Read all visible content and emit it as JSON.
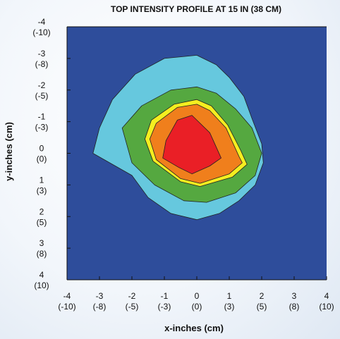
{
  "chart_data": {
    "type": "contour",
    "title": "TOP INTENSITY PROFILE AT 15 IN (38 CM)",
    "xlabel": "x-inches (cm)",
    "ylabel": "y-inches (cm)",
    "xlim": [
      -4,
      4
    ],
    "ylim": [
      -4,
      4
    ],
    "y_axis_direction": "down",
    "x_ticks": [
      {
        "value": -4,
        "inch": "-4",
        "cm": "(-10)"
      },
      {
        "value": -3,
        "inch": "-3",
        "cm": "(-8)"
      },
      {
        "value": -2,
        "inch": "-2",
        "cm": "(-5)"
      },
      {
        "value": -1,
        "inch": "-1",
        "cm": "(-3)"
      },
      {
        "value": 0,
        "inch": "0",
        "cm": "(0)"
      },
      {
        "value": 1,
        "inch": "1",
        "cm": "(3)"
      },
      {
        "value": 2,
        "inch": "2",
        "cm": "(5)"
      },
      {
        "value": 3,
        "inch": "3",
        "cm": "(8)"
      },
      {
        "value": 4,
        "inch": "4",
        "cm": "(10)"
      }
    ],
    "y_ticks": [
      {
        "value": -4,
        "inch": "-4",
        "cm": "(-10)"
      },
      {
        "value": -3,
        "inch": "-3",
        "cm": "(-8)"
      },
      {
        "value": -2,
        "inch": "-2",
        "cm": "(-5)"
      },
      {
        "value": -1,
        "inch": "-1",
        "cm": "(-3)"
      },
      {
        "value": 0,
        "inch": "0",
        "cm": "(0)"
      },
      {
        "value": 1,
        "inch": "1",
        "cm": "(3)"
      },
      {
        "value": 2,
        "inch": "2",
        "cm": "(5)"
      },
      {
        "value": 3,
        "inch": "3",
        "cm": "(8)"
      },
      {
        "value": 4,
        "inch": "4",
        "cm": "(10)"
      }
    ],
    "background_color": "#2e4d9b",
    "levels": [
      {
        "color": "#66c8de",
        "points": [
          [
            0.0,
            -3.1
          ],
          [
            0.6,
            -2.8
          ],
          [
            1.0,
            -2.4
          ],
          [
            1.45,
            -1.8
          ],
          [
            1.7,
            -1.1
          ],
          [
            2.0,
            -0.3
          ],
          [
            2.05,
            0.3
          ],
          [
            1.8,
            1.0
          ],
          [
            1.3,
            1.5
          ],
          [
            0.7,
            1.9
          ],
          [
            0.0,
            2.1
          ],
          [
            -0.8,
            1.9
          ],
          [
            -1.5,
            1.4
          ],
          [
            -2.0,
            0.7
          ],
          [
            -3.2,
            0.0
          ],
          [
            -3.0,
            -0.8
          ],
          [
            -2.6,
            -1.7
          ],
          [
            -1.9,
            -2.5
          ],
          [
            -1.0,
            -3.0
          ]
        ]
      },
      {
        "color": "#55a840",
        "points": [
          [
            -0.8,
            -2.0
          ],
          [
            0.0,
            -2.1
          ],
          [
            0.6,
            -1.9
          ],
          [
            1.2,
            -1.4
          ],
          [
            1.7,
            -0.8
          ],
          [
            2.0,
            0.0
          ],
          [
            1.8,
            0.7
          ],
          [
            1.2,
            1.25
          ],
          [
            0.3,
            1.55
          ],
          [
            -0.4,
            1.5
          ],
          [
            -1.3,
            1.0
          ],
          [
            -2.0,
            0.3
          ],
          [
            -2.3,
            -0.8
          ],
          [
            -1.7,
            -1.5
          ]
        ]
      },
      {
        "color": "#f4ee20",
        "points": [
          [
            -0.7,
            -1.55
          ],
          [
            0.0,
            -1.7
          ],
          [
            0.45,
            -1.5
          ],
          [
            0.95,
            -0.9
          ],
          [
            1.35,
            -0.1
          ],
          [
            1.55,
            0.35
          ],
          [
            1.1,
            0.75
          ],
          [
            0.1,
            1.05
          ],
          [
            -0.5,
            0.9
          ],
          [
            -1.35,
            0.25
          ],
          [
            -1.6,
            -0.45
          ],
          [
            -1.4,
            -1.05
          ]
        ]
      },
      {
        "color": "#f07f1c",
        "points": [
          [
            -0.6,
            -1.45
          ],
          [
            0.0,
            -1.55
          ],
          [
            0.4,
            -1.35
          ],
          [
            0.9,
            -0.8
          ],
          [
            1.3,
            0.1
          ],
          [
            1.4,
            0.3
          ],
          [
            1.0,
            0.65
          ],
          [
            0.1,
            0.95
          ],
          [
            -0.5,
            0.8
          ],
          [
            -1.25,
            0.2
          ],
          [
            -1.45,
            -0.45
          ],
          [
            -1.25,
            -0.95
          ]
        ]
      },
      {
        "color": "#ea1f26",
        "points": [
          [
            -0.6,
            -1.05
          ],
          [
            -0.15,
            -1.2
          ],
          [
            0.4,
            -0.65
          ],
          [
            0.75,
            0.15
          ],
          [
            0.4,
            0.4
          ],
          [
            -0.15,
            0.65
          ],
          [
            -0.55,
            0.45
          ],
          [
            -1.05,
            0.15
          ],
          [
            -0.95,
            -0.4
          ]
        ]
      }
    ]
  }
}
